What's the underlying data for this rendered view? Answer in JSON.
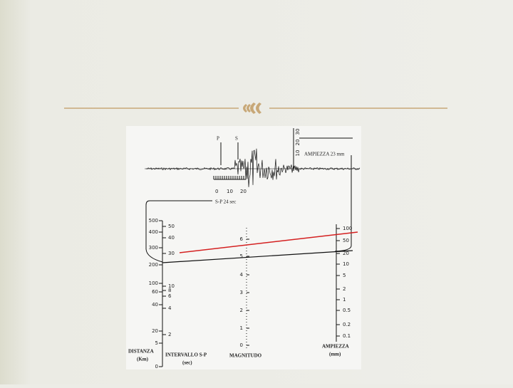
{
  "seismogram": {
    "p_label": "P",
    "s_label": "S",
    "amplitude_label": "AMPIEZZA  23 mm",
    "time_ticks": [
      "0",
      "10",
      "20"
    ],
    "sp_label": "S-P  24 sec",
    "amplitude_ticks": [
      "10",
      "20",
      "30"
    ]
  },
  "nomogram": {
    "distance": {
      "ticks": [
        "500",
        "400",
        "300",
        "200",
        "100",
        "60",
        "40",
        "20",
        "5",
        "0"
      ],
      "title": "DISTANZA",
      "unit": "(Km)"
    },
    "interval": {
      "ticks": [
        "50",
        "40",
        "30",
        "10",
        "8",
        "6",
        "4",
        "2"
      ],
      "title": "INTERVALLO S-P",
      "unit": "(sec)"
    },
    "magnitude": {
      "ticks": [
        "6",
        "5",
        "4",
        "3",
        "2",
        "1",
        "0"
      ],
      "title": "MAGNITUDO"
    },
    "amplitude": {
      "ticks": [
        "100",
        "50",
        "20",
        "10",
        "5",
        "2",
        "1",
        "0.5",
        "0.2",
        "0.1"
      ],
      "title": "AMPIEZZA",
      "unit": "(mm)"
    }
  }
}
